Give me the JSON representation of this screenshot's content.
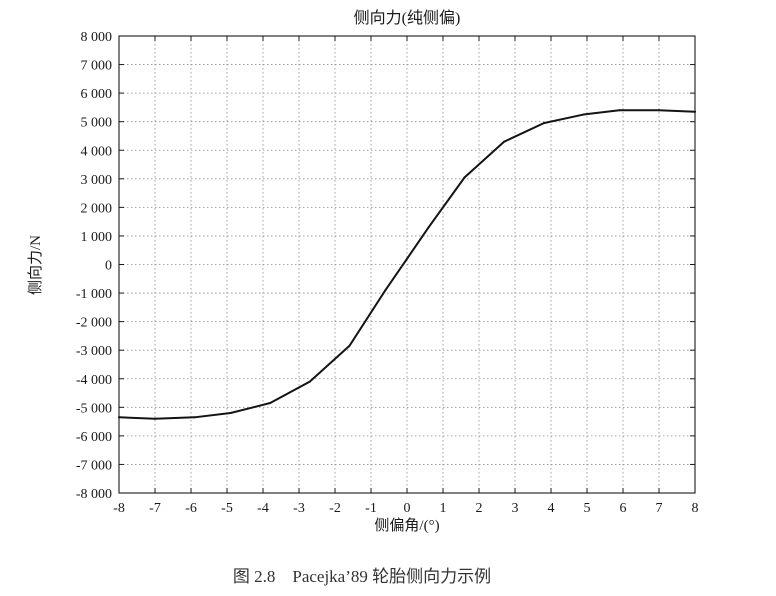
{
  "chart_data": {
    "type": "line",
    "title": "侧向力(纯侧偏)",
    "xlabel": "侧偏角/(°)",
    "ylabel": "侧向力/N",
    "xlim": [
      -8,
      8
    ],
    "ylim": [
      -8000,
      8000
    ],
    "grid": true,
    "legend": "none",
    "xticks": {
      "values": [
        -8,
        -7,
        -6,
        -5,
        -4,
        -3,
        -2,
        -1,
        0,
        1,
        2,
        3,
        4,
        5,
        6,
        7,
        8
      ],
      "labels": [
        "-8",
        "-7",
        "-6",
        "-5",
        "-4",
        "-3",
        "-2",
        "-1",
        "0",
        "1",
        "2",
        "3",
        "4",
        "5",
        "6",
        "7",
        "8"
      ]
    },
    "yticks": {
      "values": [
        8000,
        7000,
        6000,
        5000,
        4000,
        3000,
        2000,
        1000,
        0,
        -1000,
        -2000,
        -3000,
        -4000,
        -5000,
        -6000,
        -7000,
        -8000
      ],
      "labels": [
        "8 000",
        "7 000",
        "6 000",
        "5 000",
        "4 000",
        "3 000",
        "2 000",
        "1 000",
        "0",
        "-1 000",
        "-2 000",
        "-3 000",
        "-4 000",
        "-5 000",
        "-6 000",
        "-7 000",
        "-8 000"
      ]
    },
    "colors": {
      "line": "#141414",
      "grid": "#8c8c8c"
    },
    "series": [
      {
        "x": [
          -8,
          -7,
          -5.9,
          -4.9,
          -3.8,
          -2.7,
          -1.6,
          -0.6,
          0.6,
          1.6,
          2.7,
          3.8,
          4.9,
          5.9,
          7,
          8
        ],
        "y": [
          -5350,
          -5400,
          -5350,
          -5200,
          -4850,
          -4100,
          -2850,
          -900,
          1300,
          3050,
          4300,
          4950,
          5250,
          5400,
          5400,
          5350
        ]
      }
    ]
  },
  "caption": "图 2.8　Pacejka’89 轮胎侧向力示例"
}
